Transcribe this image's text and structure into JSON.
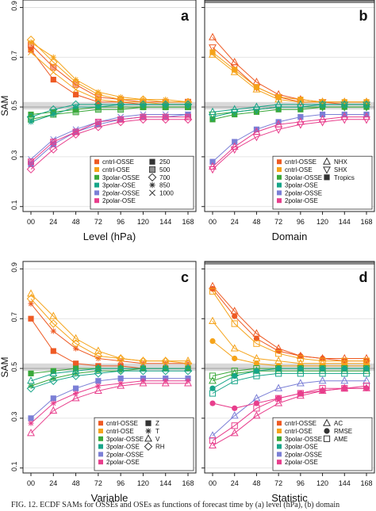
{
  "figure": {
    "caption": "FIG. 12. ECDF SAMs for OSSEs and OSEs as functions of forecast time by (a) level (hPa), (b) domain"
  },
  "colors": {
    "cntrl-OSSE": "#ee5a24",
    "cntrl-OSE": "#f5a31a",
    "3polar-OSSE": "#3aa83a",
    "3polar-OSE": "#17a589",
    "2polar-OSSE": "#7b7fd6",
    "2polar-OSE": "#e83e8c"
  },
  "chart_data": [
    {
      "panel": "a",
      "type": "line",
      "xlabel": "Level (hPa)",
      "ylabel": "SAM",
      "x": [
        "00",
        "24",
        "48",
        "72",
        "96",
        "120",
        "144",
        "168"
      ],
      "ylim": [
        0.08,
        0.93
      ],
      "yticks": [
        0.1,
        0.3,
        0.5,
        0.7,
        0.9
      ],
      "reference_band": [
        0.49,
        0.52
      ],
      "grid": true,
      "legend_position": "bottom-right",
      "series_legend": [
        "cntrl-OSSE",
        "cntrl-OSE",
        "3polar-OSSE",
        "3polar-OSE",
        "2polar-OSSE",
        "2polar-OSE"
      ],
      "marker_legend": [
        {
          "label": "250",
          "symbol": "square-filled"
        },
        {
          "label": "500",
          "symbol": "square-gray"
        },
        {
          "label": "700",
          "symbol": "diamond"
        },
        {
          "label": "850",
          "symbol": "asterisk"
        },
        {
          "label": "1000",
          "symbol": "cross"
        }
      ],
      "series": [
        {
          "name": "cntrl-OSSE",
          "values": [
            0.73,
            0.61,
            0.55,
            0.52,
            0.52,
            0.51,
            0.51,
            0.51
          ]
        },
        {
          "name": "cntrl-OSSE",
          "values": [
            0.75,
            0.66,
            0.59,
            0.54,
            0.53,
            0.52,
            0.52,
            0.52
          ]
        },
        {
          "name": "cntrl-OSE",
          "values": [
            0.77,
            0.68,
            0.6,
            0.55,
            0.53,
            0.53,
            0.52,
            0.52
          ]
        },
        {
          "name": "cntrl-OSE",
          "values": [
            0.76,
            0.7,
            0.61,
            0.56,
            0.54,
            0.53,
            0.53,
            0.52
          ]
        },
        {
          "name": "cntrl-OSE",
          "values": [
            0.72,
            0.64,
            0.57,
            0.53,
            0.52,
            0.52,
            0.51,
            0.51
          ]
        },
        {
          "name": "3polar-OSSE",
          "values": [
            0.47,
            0.48,
            0.49,
            0.5,
            0.5,
            0.5,
            0.5,
            0.5
          ]
        },
        {
          "name": "3polar-OSSE",
          "values": [
            0.45,
            0.47,
            0.48,
            0.49,
            0.49,
            0.5,
            0.5,
            0.5
          ]
        },
        {
          "name": "3polar-OSE",
          "values": [
            0.46,
            0.49,
            0.51,
            0.51,
            0.51,
            0.51,
            0.51,
            0.51
          ]
        },
        {
          "name": "3polar-OSE",
          "values": [
            0.44,
            0.47,
            0.5,
            0.5,
            0.51,
            0.51,
            0.51,
            0.51
          ]
        },
        {
          "name": "2polar-OSSE",
          "values": [
            0.29,
            0.37,
            0.41,
            0.44,
            0.46,
            0.47,
            0.47,
            0.47
          ]
        },
        {
          "name": "2polar-OSSE",
          "values": [
            0.27,
            0.35,
            0.4,
            0.43,
            0.45,
            0.46,
            0.46,
            0.47
          ]
        },
        {
          "name": "2polar-OSE",
          "values": [
            0.28,
            0.36,
            0.4,
            0.44,
            0.45,
            0.46,
            0.46,
            0.46
          ]
        },
        {
          "name": "2polar-OSE",
          "values": [
            0.25,
            0.33,
            0.39,
            0.42,
            0.44,
            0.45,
            0.45,
            0.45
          ]
        }
      ]
    },
    {
      "panel": "b",
      "type": "line",
      "xlabel": "Domain",
      "ylabel": "",
      "x": [
        "00",
        "24",
        "48",
        "72",
        "96",
        "120",
        "144",
        "168"
      ],
      "ylim": [
        0.08,
        0.93
      ],
      "yticks": [
        0.1,
        0.3,
        0.5,
        0.7,
        0.9
      ],
      "reference_band": [
        0.49,
        0.52
      ],
      "grid": true,
      "legend_position": "bottom-right",
      "series_legend": [
        "cntrl-OSSE",
        "cntrl-OSE",
        "3polar-OSSE",
        "3polar-OSE",
        "2polar-OSSE",
        "2polar-OSE"
      ],
      "marker_legend": [
        {
          "label": "NHX",
          "symbol": "triangle-up"
        },
        {
          "label": "SHX",
          "symbol": "triangle-down"
        },
        {
          "label": "Tropics",
          "symbol": "square-filled"
        }
      ],
      "series": [
        {
          "name": "cntrl-OSSE",
          "values": [
            0.78,
            0.68,
            0.6,
            0.55,
            0.53,
            0.52,
            0.52,
            0.52
          ]
        },
        {
          "name": "cntrl-OSSE",
          "values": [
            0.74,
            0.66,
            0.58,
            0.54,
            0.52,
            0.52,
            0.51,
            0.51
          ]
        },
        {
          "name": "cntrl-OSE",
          "values": [
            0.72,
            0.65,
            0.58,
            0.54,
            0.53,
            0.52,
            0.52,
            0.52
          ]
        },
        {
          "name": "cntrl-OSE",
          "values": [
            0.71,
            0.64,
            0.57,
            0.53,
            0.52,
            0.52,
            0.52,
            0.52
          ]
        },
        {
          "name": "3polar-OSSE",
          "values": [
            0.47,
            0.48,
            0.49,
            0.5,
            0.5,
            0.5,
            0.5,
            0.5
          ]
        },
        {
          "name": "3polar-OSSE",
          "values": [
            0.45,
            0.47,
            0.48,
            0.49,
            0.49,
            0.5,
            0.5,
            0.5
          ]
        },
        {
          "name": "3polar-OSE",
          "values": [
            0.48,
            0.49,
            0.5,
            0.51,
            0.51,
            0.51,
            0.51,
            0.51
          ]
        },
        {
          "name": "3polar-OSE",
          "values": [
            0.46,
            0.48,
            0.49,
            0.5,
            0.5,
            0.51,
            0.51,
            0.51
          ]
        },
        {
          "name": "2polar-OSSE",
          "values": [
            0.28,
            0.36,
            0.41,
            0.44,
            0.46,
            0.47,
            0.47,
            0.47
          ]
        },
        {
          "name": "2polar-OSE",
          "values": [
            0.26,
            0.34,
            0.4,
            0.43,
            0.44,
            0.45,
            0.46,
            0.46
          ]
        },
        {
          "name": "2polar-OSE",
          "values": [
            0.25,
            0.33,
            0.38,
            0.41,
            0.43,
            0.44,
            0.45,
            0.45
          ]
        }
      ]
    },
    {
      "panel": "c",
      "type": "line",
      "xlabel": "Variable",
      "ylabel": "SAM",
      "x": [
        "00",
        "24",
        "48",
        "72",
        "96",
        "120",
        "144",
        "168"
      ],
      "ylim": [
        0.08,
        0.93
      ],
      "yticks": [
        0.1,
        0.3,
        0.5,
        0.7,
        0.9
      ],
      "reference_band": [
        0.49,
        0.52
      ],
      "grid": true,
      "legend_position": "bottom-right",
      "series_legend": [
        "cntrl-OSSE",
        "cntrl-OSE",
        "3polar-OSSE",
        "3polar-OSE",
        "2polar-OSSE",
        "2polar-OSE"
      ],
      "marker_legend": [
        {
          "label": "Z",
          "symbol": "square-filled"
        },
        {
          "label": "T",
          "symbol": "asterisk"
        },
        {
          "label": "V",
          "symbol": "triangle-up"
        },
        {
          "label": "RH",
          "symbol": "diamond"
        }
      ],
      "series": [
        {
          "name": "cntrl-OSSE",
          "values": [
            0.7,
            0.57,
            0.52,
            0.51,
            0.51,
            0.5,
            0.5,
            0.5
          ]
        },
        {
          "name": "cntrl-OSSE",
          "values": [
            0.76,
            0.65,
            0.58,
            0.54,
            0.53,
            0.52,
            0.52,
            0.52
          ]
        },
        {
          "name": "cntrl-OSE",
          "values": [
            0.8,
            0.71,
            0.62,
            0.57,
            0.54,
            0.53,
            0.53,
            0.53
          ]
        },
        {
          "name": "cntrl-OSE",
          "values": [
            0.78,
            0.68,
            0.6,
            0.55,
            0.54,
            0.53,
            0.53,
            0.52
          ]
        },
        {
          "name": "3polar-OSSE",
          "values": [
            0.48,
            0.49,
            0.5,
            0.5,
            0.5,
            0.5,
            0.5,
            0.5
          ]
        },
        {
          "name": "3polar-OSSE",
          "values": [
            0.43,
            0.46,
            0.48,
            0.49,
            0.49,
            0.5,
            0.5,
            0.5
          ]
        },
        {
          "name": "3polar-OSE",
          "values": [
            0.45,
            0.48,
            0.49,
            0.5,
            0.5,
            0.5,
            0.5,
            0.5
          ]
        },
        {
          "name": "3polar-OSE",
          "values": [
            0.42,
            0.45,
            0.47,
            0.48,
            0.49,
            0.49,
            0.49,
            0.49
          ]
        },
        {
          "name": "2polar-OSSE",
          "values": [
            0.3,
            0.38,
            0.42,
            0.45,
            0.46,
            0.46,
            0.46,
            0.46
          ]
        },
        {
          "name": "2polar-OSE",
          "values": [
            0.28,
            0.36,
            0.4,
            0.43,
            0.44,
            0.45,
            0.45,
            0.45
          ]
        },
        {
          "name": "2polar-OSE",
          "values": [
            0.24,
            0.33,
            0.38,
            0.41,
            0.43,
            0.44,
            0.44,
            0.44
          ]
        }
      ]
    },
    {
      "panel": "d",
      "type": "line",
      "xlabel": "Statistic",
      "ylabel": "",
      "x": [
        "00",
        "24",
        "48",
        "72",
        "96",
        "120",
        "144",
        "168"
      ],
      "ylim": [
        0.08,
        0.93
      ],
      "yticks": [
        0.1,
        0.3,
        0.5,
        0.7,
        0.9
      ],
      "reference_band": [
        0.49,
        0.52
      ],
      "grid": true,
      "legend_position": "bottom-right",
      "series_legend": [
        "cntrl-OSSE",
        "cntrl-OSE",
        "3polar-OSSE",
        "3polar-OSE",
        "2polar-OSSE",
        "2polar-OSE"
      ],
      "marker_legend": [
        {
          "label": "AC",
          "symbol": "triangle-up"
        },
        {
          "label": "RMSE",
          "symbol": "circle-filled"
        },
        {
          "label": "AME",
          "symbol": "square-open"
        }
      ],
      "series": [
        {
          "name": "cntrl-OSSE",
          "values": [
            0.83,
            0.73,
            0.64,
            0.58,
            0.55,
            0.54,
            0.54,
            0.54
          ]
        },
        {
          "name": "cntrl-OSSE",
          "values": [
            0.82,
            0.71,
            0.62,
            0.57,
            0.55,
            0.54,
            0.53,
            0.53
          ]
        },
        {
          "name": "cntrl-OSE",
          "values": [
            0.81,
            0.68,
            0.6,
            0.56,
            0.54,
            0.53,
            0.53,
            0.53
          ]
        },
        {
          "name": "cntrl-OSE",
          "values": [
            0.69,
            0.58,
            0.54,
            0.53,
            0.52,
            0.52,
            0.52,
            0.52
          ]
        },
        {
          "name": "cntrl-OSE",
          "values": [
            0.61,
            0.54,
            0.52,
            0.51,
            0.51,
            0.51,
            0.51,
            0.51
          ]
        },
        {
          "name": "3polar-OSSE",
          "values": [
            0.47,
            0.49,
            0.5,
            0.5,
            0.5,
            0.5,
            0.5,
            0.5
          ]
        },
        {
          "name": "3polar-OSSE",
          "values": [
            0.45,
            0.48,
            0.49,
            0.49,
            0.49,
            0.49,
            0.49,
            0.49
          ]
        },
        {
          "name": "3polar-OSE",
          "values": [
            0.42,
            0.47,
            0.49,
            0.5,
            0.5,
            0.5,
            0.5,
            0.5
          ]
        },
        {
          "name": "3polar-OSE",
          "values": [
            0.4,
            0.45,
            0.47,
            0.48,
            0.48,
            0.48,
            0.48,
            0.48
          ]
        },
        {
          "name": "2polar-OSSE",
          "values": [
            0.23,
            0.31,
            0.38,
            0.42,
            0.44,
            0.45,
            0.45,
            0.45
          ]
        },
        {
          "name": "2polar-OSE",
          "values": [
            0.36,
            0.34,
            0.36,
            0.38,
            0.4,
            0.41,
            0.42,
            0.42
          ]
        },
        {
          "name": "2polar-OSE",
          "values": [
            0.21,
            0.27,
            0.34,
            0.38,
            0.4,
            0.42,
            0.42,
            0.43
          ]
        },
        {
          "name": "2polar-OSE",
          "values": [
            0.19,
            0.24,
            0.31,
            0.36,
            0.39,
            0.41,
            0.42,
            0.42
          ]
        }
      ]
    }
  ]
}
